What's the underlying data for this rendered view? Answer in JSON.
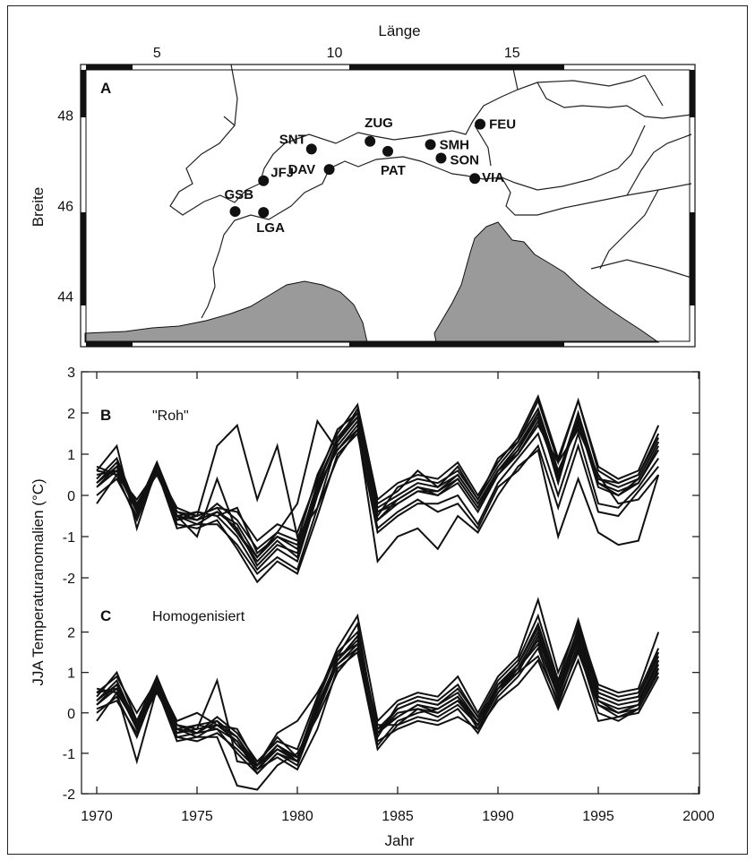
{
  "chart_data": [
    {
      "type": "map",
      "panel": "A",
      "xlabel": "Länge",
      "ylabel": "Breite",
      "xlim": [
        3,
        20
      ],
      "ylim": [
        43,
        49
      ],
      "xticks": [
        "5",
        "10",
        "15"
      ],
      "yticks": [
        "44",
        "46",
        "48"
      ],
      "stations": [
        {
          "name": "SNT",
          "lon": 9.35,
          "lat": 47.25
        },
        {
          "name": "ZUG",
          "lon": 11.0,
          "lat": 47.42
        },
        {
          "name": "FEU",
          "lon": 14.1,
          "lat": 47.8
        },
        {
          "name": "DAV",
          "lon": 9.85,
          "lat": 46.8
        },
        {
          "name": "PAT",
          "lon": 11.5,
          "lat": 47.2
        },
        {
          "name": "SMH",
          "lon": 12.7,
          "lat": 47.35
        },
        {
          "name": "SON",
          "lon": 13.0,
          "lat": 47.05
        },
        {
          "name": "VIA",
          "lon": 13.95,
          "lat": 46.6
        },
        {
          "name": "JFJ",
          "lon": 8.0,
          "lat": 46.55
        },
        {
          "name": "GSB",
          "lon": 7.2,
          "lat": 45.87
        },
        {
          "name": "LGA",
          "lon": 8.0,
          "lat": 45.85
        }
      ],
      "sea_color": "#9a9a9a"
    },
    {
      "type": "line",
      "panel": "B",
      "note": "\"Roh\"",
      "x": [
        1970,
        1971,
        1972,
        1973,
        1974,
        1975,
        1976,
        1977,
        1978,
        1979,
        1980,
        1981,
        1982,
        1983,
        1984,
        1985,
        1986,
        1987,
        1988,
        1989,
        1990,
        1991,
        1992,
        1993,
        1994,
        1995,
        1996,
        1997,
        1998
      ],
      "ylim": [
        -2.5,
        3
      ],
      "yticks": [
        "-2",
        "-1",
        "0",
        "1",
        "2",
        "3"
      ],
      "series": [
        {
          "values": [
            0.3,
            0.8,
            -0.3,
            0.8,
            -0.5,
            -0.6,
            -0.4,
            -0.7,
            -1.5,
            -1.0,
            -1.3,
            0.3,
            1.4,
            2.0,
            -0.3,
            0.0,
            0.3,
            0.2,
            0.5,
            -0.2,
            0.6,
            1.2,
            2.0,
            0.3,
            2.0,
            0.4,
            0.2,
            0.4,
            1.3
          ]
        },
        {
          "values": [
            0.5,
            0.6,
            -0.4,
            0.7,
            -0.4,
            -0.5,
            -0.3,
            -0.9,
            -1.6,
            -1.1,
            -1.5,
            0.1,
            1.2,
            1.8,
            -0.6,
            -0.2,
            0.1,
            0.0,
            0.3,
            -0.4,
            0.5,
            1.0,
            1.8,
            0.5,
            1.8,
            0.2,
            0.0,
            0.3,
            1.1
          ]
        },
        {
          "values": [
            0.2,
            0.7,
            -0.2,
            0.6,
            -0.6,
            -0.4,
            -0.5,
            -1.0,
            -1.8,
            -1.3,
            -1.6,
            0.0,
            1.3,
            2.1,
            -0.5,
            0.2,
            0.4,
            0.3,
            0.6,
            -0.1,
            0.7,
            1.3,
            2.3,
            0.8,
            2.3,
            0.6,
            0.3,
            0.5,
            1.5
          ]
        },
        {
          "values": [
            0.0,
            0.4,
            -0.5,
            0.7,
            -0.7,
            -0.8,
            -0.6,
            -1.3,
            -2.1,
            -1.6,
            -1.9,
            -0.5,
            1.0,
            1.5,
            -0.9,
            -0.5,
            -0.2,
            -0.2,
            0.0,
            -0.7,
            0.3,
            0.9,
            1.5,
            0.0,
            1.5,
            -0.2,
            -0.3,
            0.2,
            0.9
          ]
        },
        {
          "values": [
            0.4,
            0.9,
            -0.3,
            0.8,
            -0.4,
            -0.6,
            -0.2,
            -0.6,
            -1.3,
            -0.9,
            -1.1,
            0.5,
            1.5,
            2.2,
            -0.1,
            0.3,
            0.5,
            0.4,
            0.8,
            0.0,
            0.8,
            1.4,
            2.4,
            0.9,
            2.3,
            0.7,
            0.4,
            0.6,
            1.7
          ]
        },
        {
          "values": [
            0.6,
            0.5,
            -0.2,
            0.5,
            -0.5,
            -0.7,
            -0.4,
            -0.8,
            -1.7,
            -1.2,
            -1.4,
            0.2,
            1.1,
            1.7,
            -0.4,
            -0.1,
            0.2,
            0.1,
            0.4,
            -0.3,
            0.5,
            1.1,
            1.9,
            0.4,
            1.9,
            0.3,
            0.1,
            0.3,
            1.2
          ]
        },
        {
          "values": [
            -0.2,
            0.5,
            -0.6,
            0.6,
            -0.8,
            -0.7,
            -0.7,
            -1.2,
            -1.9,
            -1.5,
            -1.8,
            -0.3,
            0.9,
            1.6,
            -0.8,
            -0.4,
            -0.1,
            -0.4,
            -0.2,
            -0.8,
            0.2,
            0.6,
            1.2,
            -0.3,
            1.2,
            -0.4,
            -0.5,
            0.1,
            0.7
          ]
        },
        {
          "values": [
            0.3,
            0.7,
            -0.4,
            0.7,
            -0.6,
            -0.5,
            1.2,
            1.7,
            -0.1,
            1.2,
            -1.0,
            -0.3,
            1.3,
            1.9,
            -0.6,
            -0.1,
            0.2,
            0.0,
            0.4,
            -0.3,
            0.6,
            1.1,
            2.0,
            0.5,
            2.0,
            0.3,
            0.0,
            0.4,
            1.3
          ]
        },
        {
          "values": [
            0.6,
            1.2,
            -0.8,
            0.7,
            -0.5,
            -1.0,
            0.4,
            -0.9,
            -1.5,
            -0.9,
            -0.2,
            1.8,
            1.1,
            1.6,
            -1.6,
            -1.0,
            -0.8,
            -1.3,
            -0.5,
            -0.9,
            0.0,
            0.7,
            1.1,
            -1.0,
            0.4,
            -0.9,
            -1.2,
            -1.1,
            0.5
          ]
        },
        {
          "values": [
            0.7,
            0.5,
            -0.1,
            0.6,
            -0.3,
            -0.5,
            -0.3,
            -0.4,
            -1.1,
            -0.7,
            -0.9,
            0.4,
            1.6,
            2.0,
            -0.2,
            0.1,
            0.6,
            0.2,
            0.7,
            -0.1,
            0.9,
            1.3,
            2.1,
            0.6,
            1.7,
            0.4,
            0.3,
            0.5,
            1.4
          ]
        },
        {
          "values": [
            0.2,
            0.6,
            -0.3,
            0.7,
            -0.5,
            -0.4,
            -0.5,
            -0.3,
            -1.4,
            -1.0,
            -1.2,
            0.2,
            1.4,
            1.9,
            -0.4,
            -0.2,
            0.1,
            0.1,
            0.5,
            -0.2,
            0.6,
            1.0,
            1.7,
            0.8,
            1.6,
            0.5,
            -0.2,
            -0.1,
            0.5
          ]
        }
      ]
    },
    {
      "type": "line",
      "panel": "C",
      "note": "Homogenisiert",
      "x": [
        1970,
        1971,
        1972,
        1973,
        1974,
        1975,
        1976,
        1977,
        1978,
        1979,
        1980,
        1981,
        1982,
        1983,
        1984,
        1985,
        1986,
        1987,
        1988,
        1989,
        1990,
        1991,
        1992,
        1993,
        1994,
        1995,
        1996,
        1997,
        1998
      ],
      "ylim": [
        -2,
        2.5
      ],
      "yticks": [
        "-2",
        "-1",
        "0",
        "1",
        "2"
      ],
      "series": [
        {
          "values": [
            0.3,
            0.8,
            -0.3,
            0.8,
            -0.3,
            -0.4,
            -0.3,
            -0.6,
            -1.4,
            -0.8,
            -1.1,
            0.3,
            1.5,
            2.0,
            -0.4,
            0.1,
            0.3,
            0.2,
            0.5,
            -0.2,
            0.7,
            1.2,
            2.1,
            0.6,
            2.1,
            0.5,
            0.3,
            0.4,
            1.4
          ]
        },
        {
          "values": [
            0.5,
            0.6,
            -0.4,
            0.7,
            -0.4,
            -0.5,
            -0.2,
            -0.8,
            -1.3,
            -0.9,
            -1.2,
            0.1,
            1.3,
            1.8,
            -0.5,
            0.0,
            0.1,
            0.0,
            0.3,
            -0.3,
            0.6,
            1.0,
            1.9,
            0.4,
            1.9,
            0.3,
            0.1,
            0.2,
            1.2
          ]
        },
        {
          "values": [
            0.2,
            0.7,
            -0.2,
            0.6,
            -0.5,
            -0.3,
            -0.4,
            -0.7,
            -1.5,
            -1.0,
            -1.3,
            0.0,
            1.4,
            2.2,
            -0.6,
            0.2,
            0.4,
            0.3,
            0.7,
            -0.1,
            0.8,
            1.3,
            2.4,
            0.8,
            2.3,
            0.6,
            0.4,
            0.5,
            1.6
          ]
        },
        {
          "values": [
            0.0,
            0.4,
            -0.6,
            0.7,
            -0.6,
            -0.7,
            -0.5,
            -0.9,
            -1.4,
            -1.1,
            -1.4,
            -0.4,
            1.1,
            1.5,
            -0.9,
            -0.3,
            -0.1,
            -0.2,
            0.1,
            -0.5,
            0.4,
            0.9,
            1.6,
            0.2,
            1.6,
            0.0,
            -0.2,
            0.1,
            1.0
          ]
        },
        {
          "values": [
            0.4,
            1.0,
            -0.2,
            0.9,
            -0.3,
            -0.5,
            -0.1,
            -0.5,
            -1.2,
            -0.7,
            -0.9,
            0.4,
            1.6,
            2.4,
            -0.2,
            0.3,
            0.5,
            0.4,
            0.9,
            0.0,
            0.9,
            1.4,
            2.8,
            1.0,
            2.2,
            0.7,
            0.5,
            0.6,
            2.0
          ]
        },
        {
          "values": [
            0.6,
            0.5,
            -0.3,
            0.5,
            -0.4,
            -0.6,
            -0.3,
            -0.7,
            -1.4,
            -0.9,
            -1.1,
            0.2,
            1.2,
            1.7,
            -0.4,
            -0.1,
            0.2,
            0.1,
            0.4,
            -0.2,
            0.6,
            1.1,
            2.0,
            0.5,
            2.0,
            0.4,
            0.2,
            0.3,
            1.3
          ]
        },
        {
          "values": [
            -0.2,
            0.5,
            -1.2,
            0.6,
            -0.7,
            -0.6,
            -0.6,
            -1.8,
            -1.9,
            -1.3,
            -1.0,
            -0.1,
            1.0,
            1.6,
            -0.7,
            -0.4,
            -0.2,
            -0.3,
            -0.1,
            -0.4,
            0.3,
            0.7,
            1.3,
            0.1,
            1.3,
            -0.2,
            -0.1,
            0.0,
            0.9
          ]
        },
        {
          "values": [
            0.3,
            0.7,
            -0.4,
            0.7,
            -0.5,
            -0.4,
            0.8,
            -1.2,
            -1.3,
            -0.6,
            -1.1,
            0.1,
            1.3,
            1.9,
            -0.5,
            -0.1,
            0.2,
            0.0,
            0.3,
            -0.2,
            0.7,
            1.1,
            1.8,
            0.6,
            1.8,
            0.3,
            0.0,
            0.2,
            1.3
          ]
        },
        {
          "values": [
            0.5,
            0.9,
            0.0,
            0.8,
            -0.2,
            0.0,
            -0.3,
            -0.4,
            -1.3,
            -0.5,
            -0.2,
            0.5,
            1.4,
            1.7,
            -0.3,
            -0.3,
            0.1,
            -0.1,
            0.2,
            -0.3,
            0.5,
            1.0,
            1.4,
            0.3,
            1.5,
            0.2,
            0.0,
            0.1,
            1.1
          ]
        },
        {
          "values": [
            0.1,
            0.3,
            -0.5,
            0.6,
            -0.6,
            -0.5,
            -0.4,
            -1.0,
            -1.5,
            -1.0,
            -1.2,
            0.0,
            1.2,
            1.6,
            -0.8,
            -0.2,
            0.0,
            0.1,
            0.4,
            -0.4,
            0.5,
            1.1,
            1.7,
            0.4,
            1.7,
            0.2,
            -0.1,
            0.1,
            1.1
          ]
        },
        {
          "values": [
            0.2,
            0.6,
            -0.3,
            0.8,
            -0.4,
            -0.3,
            -0.2,
            -0.6,
            -1.3,
            -0.8,
            -1.2,
            0.2,
            1.3,
            1.9,
            -0.5,
            0.1,
            0.3,
            0.2,
            0.6,
            -0.1,
            0.6,
            1.2,
            2.2,
            0.7,
            2.1,
            0.5,
            0.3,
            0.4,
            1.5
          ]
        }
      ]
    }
  ],
  "shared": {
    "xlabel": "Jahr",
    "ylabel": "JJA Temperaturanomalien (°C)",
    "xticks": [
      "1970",
      "1975",
      "1980",
      "1985",
      "1990",
      "1995",
      "2000"
    ],
    "xlim": [
      1969.5,
      2000
    ]
  }
}
